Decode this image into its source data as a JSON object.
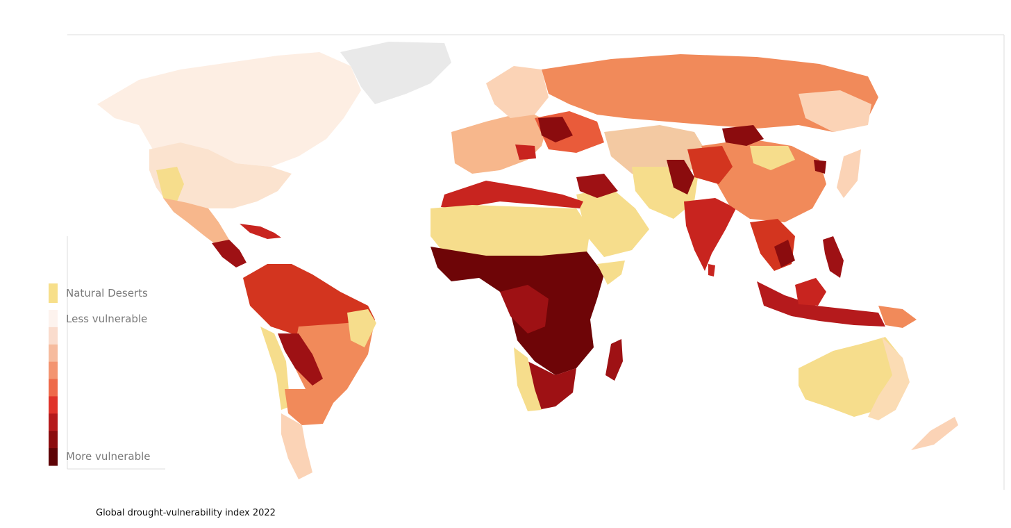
{
  "legend": {
    "natural_deserts": "Natural Deserts",
    "less_vulnerable": "Less vulnerable",
    "more_vulnerable": "More vulnerable",
    "scale_colors": [
      "#fdf3ee",
      "#fadccd",
      "#f6bb9e",
      "#f39470",
      "#ee6a4a",
      "#e0332a",
      "#b51a1c",
      "#8b0c0e",
      "#5e0406"
    ],
    "desert_color": "#f7df8a"
  },
  "caption": "Global drought-vulnerability index 2022",
  "colors": {
    "ice": "#e9e9e9",
    "deep": "#6e0507",
    "dark": "#9e1114",
    "red": "#c8241f",
    "orange_red": "#e95b3a",
    "orange": "#f18a5a",
    "peach": "#f7b78c",
    "light_peach": "#fbd3b6",
    "pale": "#fdeee3",
    "desert": "#f6dd8c"
  }
}
